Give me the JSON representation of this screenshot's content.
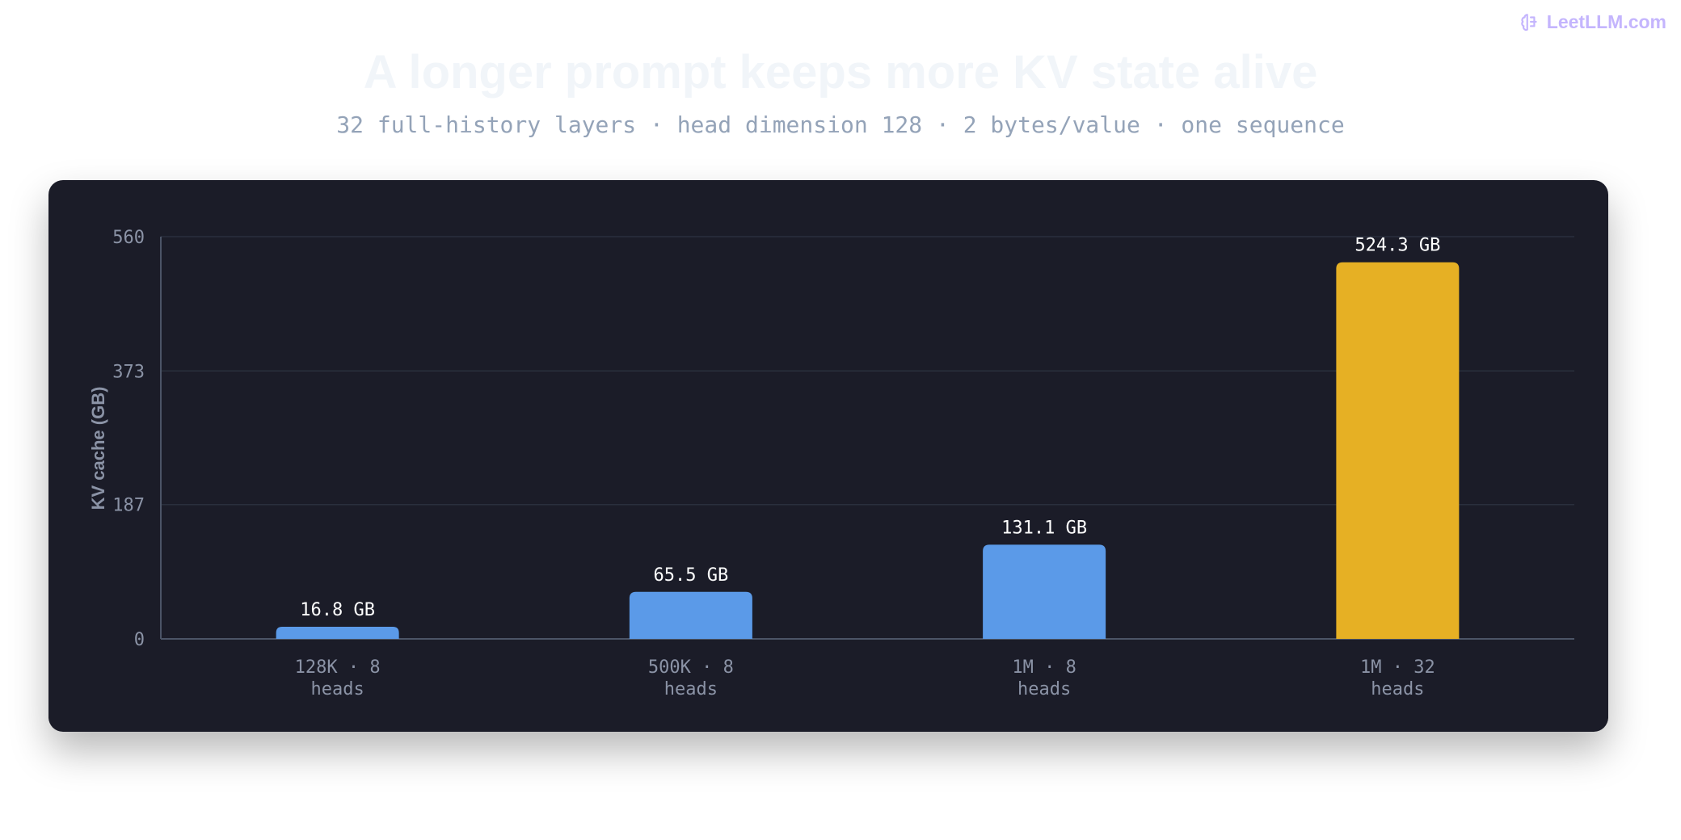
{
  "brand": {
    "text": "LeetLLM.com",
    "icon": "brain-icon",
    "color": "#c4b5fd"
  },
  "chart_data": {
    "type": "bar",
    "title": "A longer prompt keeps more KV state alive",
    "subtitle": "32 full-history layers · head dimension 128 · 2 bytes/value · one sequence",
    "xlabel": "",
    "ylabel": "KV cache (GB)",
    "ylim": [
      0,
      560
    ],
    "yticks": [
      0,
      187,
      373,
      560
    ],
    "grid": true,
    "categories": [
      [
        "128K · 8",
        "heads"
      ],
      [
        "500K · 8",
        "heads"
      ],
      [
        "1M · 8",
        "heads"
      ],
      [
        "1M · 32",
        "heads"
      ]
    ],
    "values": [
      16.8,
      65.5,
      131.1,
      524.3
    ],
    "value_labels": [
      "16.8 GB",
      "65.5 GB",
      "131.1 GB",
      "524.3 GB"
    ],
    "colors": [
      "#5b9ae8",
      "#5b9ae8",
      "#5b9ae8",
      "#e6b024"
    ],
    "background": "#1b1c28",
    "grid_color": "#2a2f3d",
    "axis_color": "#4b5466"
  }
}
